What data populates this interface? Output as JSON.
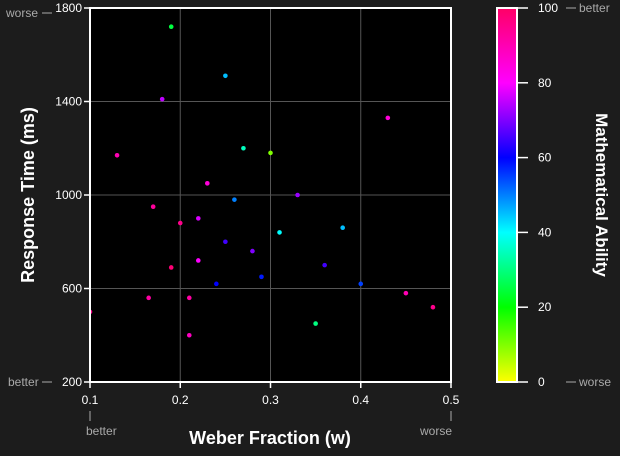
{
  "chart_data": {
    "type": "scatter",
    "xlabel": "Weber Fraction (w)",
    "ylabel": "Response Time (ms)",
    "colorbar_label": "Mathematical Ability",
    "xlim": [
      0.1,
      0.5
    ],
    "ylim": [
      200,
      1800
    ],
    "x_ticks": [
      "0.1",
      "0.2",
      "0.3",
      "0.4",
      "0.5"
    ],
    "y_ticks": [
      "200",
      "600",
      "1000",
      "1400",
      "1800"
    ],
    "colorbar_ticks": [
      "0",
      "20",
      "40",
      "60",
      "80",
      "100"
    ],
    "colorbar_range": [
      0,
      100
    ],
    "x_annotations": {
      "low": "better",
      "high": "worse"
    },
    "y_annotations": {
      "low": "better",
      "high": "worse"
    },
    "colorbar_annotations": {
      "low": "worse",
      "high": "better"
    },
    "grid": true,
    "colormap": [
      "#ffff00",
      "#00ff00",
      "#00ffff",
      "#0000ff",
      "#ff00ff",
      "#ff0066"
    ],
    "background": "#000000",
    "points": [
      {
        "x": 0.19,
        "y": 1720,
        "v": 25
      },
      {
        "x": 0.25,
        "y": 1510,
        "v": 45
      },
      {
        "x": 0.18,
        "y": 1410,
        "v": 75
      },
      {
        "x": 0.43,
        "y": 1330,
        "v": 85
      },
      {
        "x": 0.1,
        "y": 500,
        "v": 95
      },
      {
        "x": 0.13,
        "y": 1170,
        "v": 90
      },
      {
        "x": 0.165,
        "y": 560,
        "v": 92
      },
      {
        "x": 0.21,
        "y": 400,
        "v": 88
      },
      {
        "x": 0.3,
        "y": 1180,
        "v": 10
      },
      {
        "x": 0.35,
        "y": 450,
        "v": 30
      },
      {
        "x": 0.2,
        "y": 880,
        "v": 95
      },
      {
        "x": 0.22,
        "y": 720,
        "v": 80
      },
      {
        "x": 0.24,
        "y": 620,
        "v": 60
      },
      {
        "x": 0.26,
        "y": 980,
        "v": 50
      },
      {
        "x": 0.23,
        "y": 1050,
        "v": 85
      },
      {
        "x": 0.28,
        "y": 760,
        "v": 70
      },
      {
        "x": 0.21,
        "y": 560,
        "v": 92
      },
      {
        "x": 0.19,
        "y": 690,
        "v": 98
      },
      {
        "x": 0.31,
        "y": 840,
        "v": 40
      },
      {
        "x": 0.36,
        "y": 700,
        "v": 65
      },
      {
        "x": 0.4,
        "y": 620,
        "v": 55
      },
      {
        "x": 0.45,
        "y": 580,
        "v": 90
      },
      {
        "x": 0.48,
        "y": 520,
        "v": 95
      },
      {
        "x": 0.27,
        "y": 1200,
        "v": 35
      },
      {
        "x": 0.33,
        "y": 1000,
        "v": 72
      },
      {
        "x": 0.17,
        "y": 950,
        "v": 93
      },
      {
        "x": 0.25,
        "y": 800,
        "v": 65
      },
      {
        "x": 0.22,
        "y": 900,
        "v": 77
      },
      {
        "x": 0.29,
        "y": 650,
        "v": 58
      },
      {
        "x": 0.38,
        "y": 860,
        "v": 45
      }
    ]
  }
}
